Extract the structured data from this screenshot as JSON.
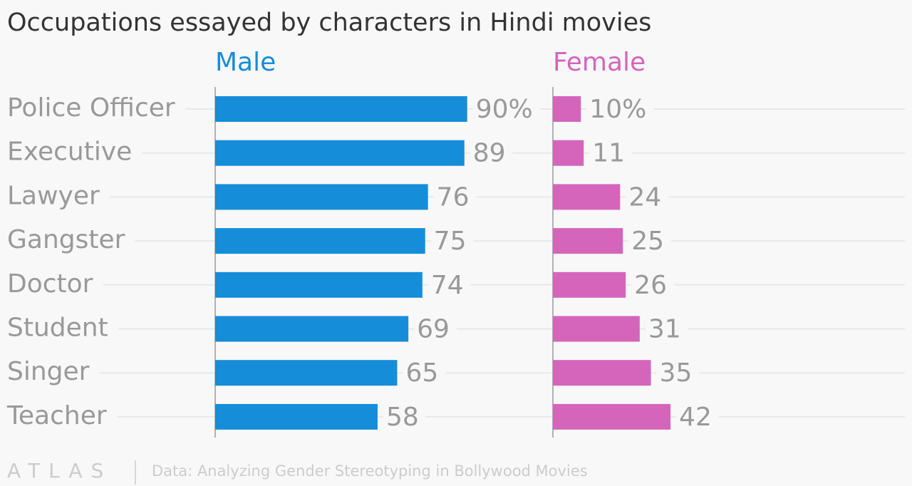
{
  "chart_data": {
    "type": "bar",
    "orientation": "horizontal",
    "title": "Occupations essayed by characters in Hindi movies",
    "categories": [
      "Police Officer",
      "Executive",
      "Lawyer",
      "Gangster",
      "Doctor",
      "Student",
      "Singer",
      "Teacher"
    ],
    "series": [
      {
        "name": "Male",
        "color": "#168dd9",
        "values": [
          90,
          89,
          76,
          75,
          74,
          69,
          65,
          58
        ],
        "value_labels": [
          "90%",
          "89",
          "76",
          "75",
          "74",
          "69",
          "65",
          "58"
        ]
      },
      {
        "name": "Female",
        "color": "#d465bb",
        "values": [
          10,
          11,
          24,
          25,
          26,
          31,
          35,
          42
        ],
        "value_labels": [
          "10%",
          "11",
          "24",
          "25",
          "26",
          "31",
          "35",
          "42"
        ]
      }
    ],
    "xlim": [
      0,
      100
    ],
    "logo": "ATLAS",
    "source": "Data: Analyzing Gender Stereotyping in Bollywood Movies"
  }
}
